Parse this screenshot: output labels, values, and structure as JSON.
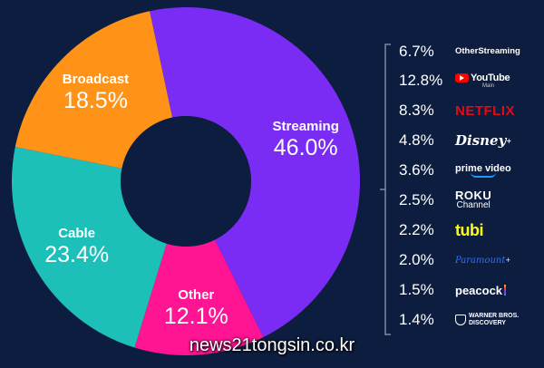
{
  "chart_data": {
    "type": "pie",
    "donut": true,
    "slices": [
      {
        "label": "Streaming",
        "value": 46.0,
        "display": "46.0%",
        "color": "#7a2cf5"
      },
      {
        "label": "Other",
        "value": 12.1,
        "display": "12.1%",
        "color": "#ff1493"
      },
      {
        "label": "Cable",
        "value": 23.4,
        "display": "23.4%",
        "color": "#1cc0b9"
      },
      {
        "label": "Broadcast",
        "value": 18.5,
        "display": "18.5%",
        "color": "#ff9318"
      }
    ],
    "legend": [
      {
        "value": "6.7%",
        "brand": "Other Streaming",
        "brand_l1": "Other",
        "brand_l2": "Streaming",
        "icon": "text-logo"
      },
      {
        "value": "12.8%",
        "brand": "YouTube",
        "sub": "Main",
        "icon": "youtube-logo-icon",
        "color": "#ff0000"
      },
      {
        "value": "8.3%",
        "brand": "NETFLIX",
        "icon": "netflix-logo",
        "color": "#e50914"
      },
      {
        "value": "4.8%",
        "brand": "Disney",
        "mark": "+",
        "icon": "disney-plus-logo"
      },
      {
        "value": "3.6%",
        "brand": "prime video",
        "icon": "prime-video-logo",
        "color": "#1a98ff"
      },
      {
        "value": "2.5%",
        "brand": "Roku Channel",
        "brand_l1": "ROKU",
        "brand_l2": "Channel",
        "icon": "roku-logo"
      },
      {
        "value": "2.2%",
        "brand": "tubi",
        "icon": "tubi-logo",
        "color": "#ffff13"
      },
      {
        "value": "2.0%",
        "brand": "Paramount",
        "mark": "+",
        "icon": "paramount-plus-logo",
        "color": "#2f6fff"
      },
      {
        "value": "1.5%",
        "brand": "peacock",
        "icon": "peacock-logo"
      },
      {
        "value": "1.4%",
        "brand": "Warner Bros. Discovery",
        "brand_l1": "WARNER BROS.",
        "brand_l2": "DISCOVERY",
        "icon": "wbd-shield-icon"
      }
    ]
  },
  "watermark": "news21tongsin.co.kr",
  "colors": {
    "background": "#0d1d3f",
    "bracket": "#7c8aa8"
  }
}
